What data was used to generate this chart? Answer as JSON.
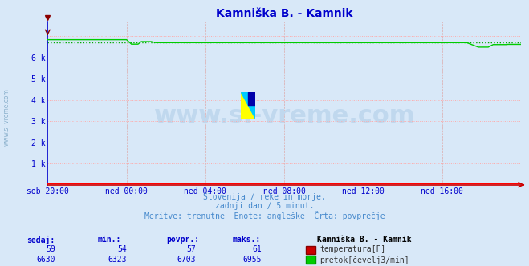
{
  "title": "Kamniška B. - Kamnik",
  "bg_color": "#d8e8f8",
  "plot_bg_color": "#d8e8f8",
  "grid_color": "#ffaaaa",
  "grid_color_v": "#ddaaaa",
  "x_labels": [
    "sob 20:00",
    "ned 00:00",
    "ned 04:00",
    "ned 08:00",
    "ned 12:00",
    "ned 16:00"
  ],
  "x_ticks_norm": [
    0.0,
    0.1667,
    0.3333,
    0.5,
    0.6667,
    0.8333
  ],
  "ylim": [
    0,
    7700
  ],
  "yticks": [
    0,
    1000,
    2000,
    3000,
    4000,
    5000,
    6000,
    7000
  ],
  "ytick_labels": [
    "",
    "1 k",
    "2 k",
    "3 k",
    "4 k",
    "5 k",
    "6 k",
    ""
  ],
  "temp_color": "#ff0000",
  "flow_color": "#00cc00",
  "avg_color_dotted": "#00aa00",
  "axis_color_bottom": "#cc0000",
  "axis_color_left": "#0000cc",
  "title_color": "#0000cc",
  "label_color": "#0000cc",
  "footer_color": "#4488cc",
  "footer_lines": [
    "Slovenija / reke in morje.",
    "zadnji dan / 5 minut.",
    "Meritve: trenutne  Enote: angleške  Črta: povprečje"
  ],
  "table_headers": [
    "sedaj:",
    "min.:",
    "povpr.:",
    "maks.:"
  ],
  "table_header_color": "#0000cc",
  "temp_row": [
    "59",
    "54",
    "57",
    "61"
  ],
  "flow_row": [
    "6630",
    "6323",
    "6703",
    "6955"
  ],
  "temp_label": "temperatura[F]",
  "flow_label": "pretok[čevelj3/min]",
  "station_label": "Kamniška B. - Kamnik",
  "watermark_text": "www.si-vreme.com",
  "watermark_color": "#c0d8ee",
  "watermark_fontsize": 22,
  "n_points": 289,
  "flow_avg": 6703,
  "left_watermark": "www.si-vreme.com",
  "left_watermark_color": "#8ab0cc"
}
